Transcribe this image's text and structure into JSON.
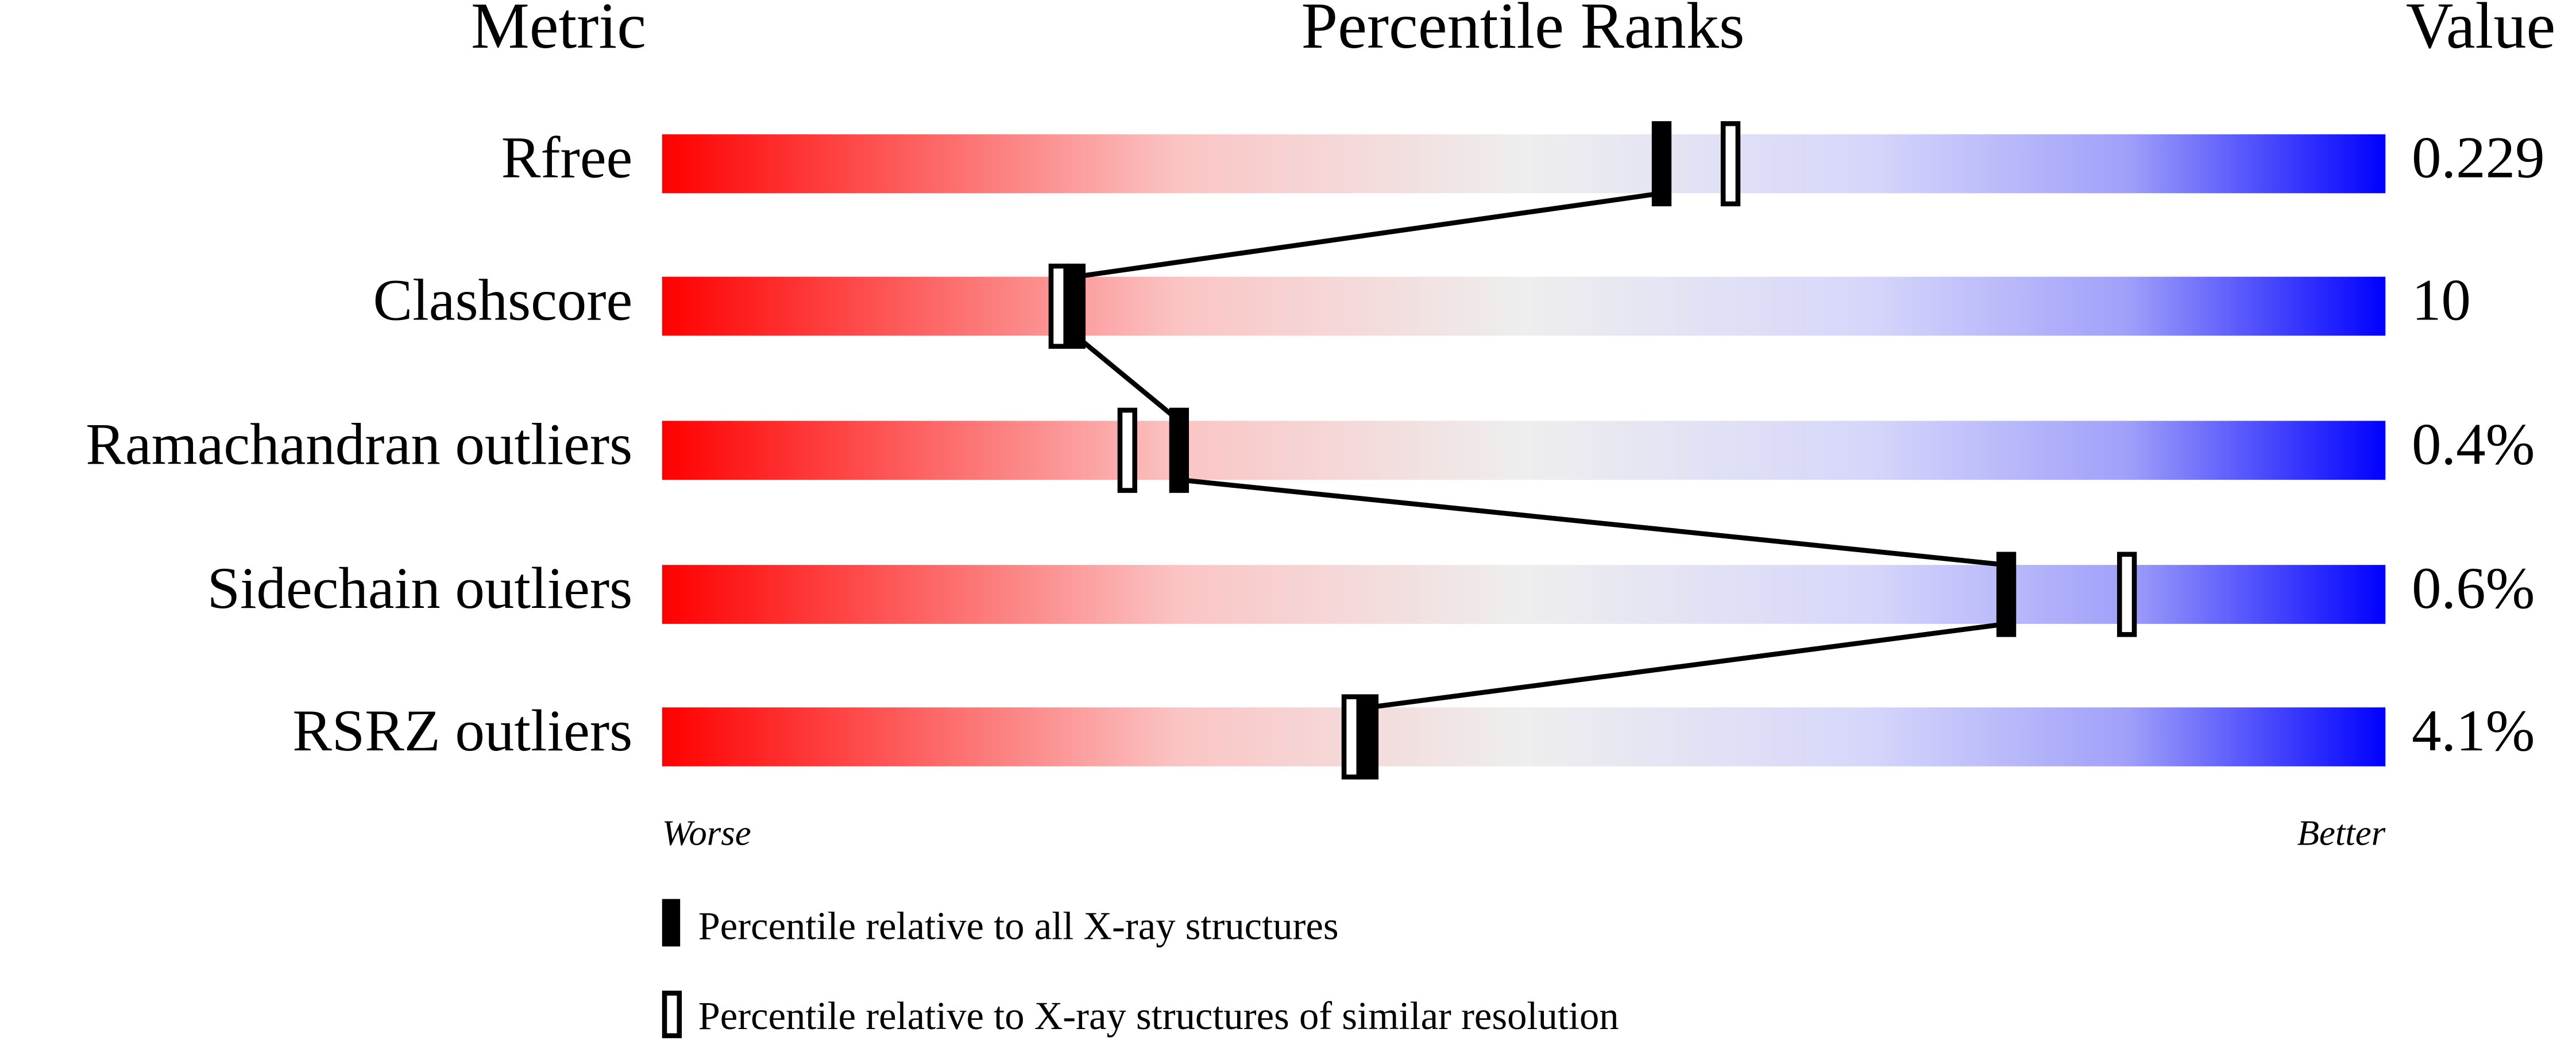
{
  "chart_data": {
    "type": "percentile_slider",
    "headers": [
      "Metric",
      "Percentile Ranks",
      "Value"
    ],
    "categories": [
      "Rfree",
      "Clashscore",
      "Ramachandran outliers",
      "Sidechain outliers",
      "RSRZ outliers"
    ],
    "metric_values": [
      "0.229",
      "10",
      "0.4%",
      "0.6%",
      "4.1%"
    ],
    "series": [
      {
        "name": "Percentile relative to all X-ray structures",
        "color": "#000000",
        "values": [
          58,
          24,
          30,
          78,
          41
        ]
      },
      {
        "name": "Percentile relative to X-ray structures of similar resolution",
        "color": "#000000",
        "values": [
          62,
          23,
          27,
          85,
          40
        ]
      }
    ],
    "xlim": [
      0,
      100
    ],
    "axis_labels": [
      "Worse",
      "Better"
    ]
  }
}
